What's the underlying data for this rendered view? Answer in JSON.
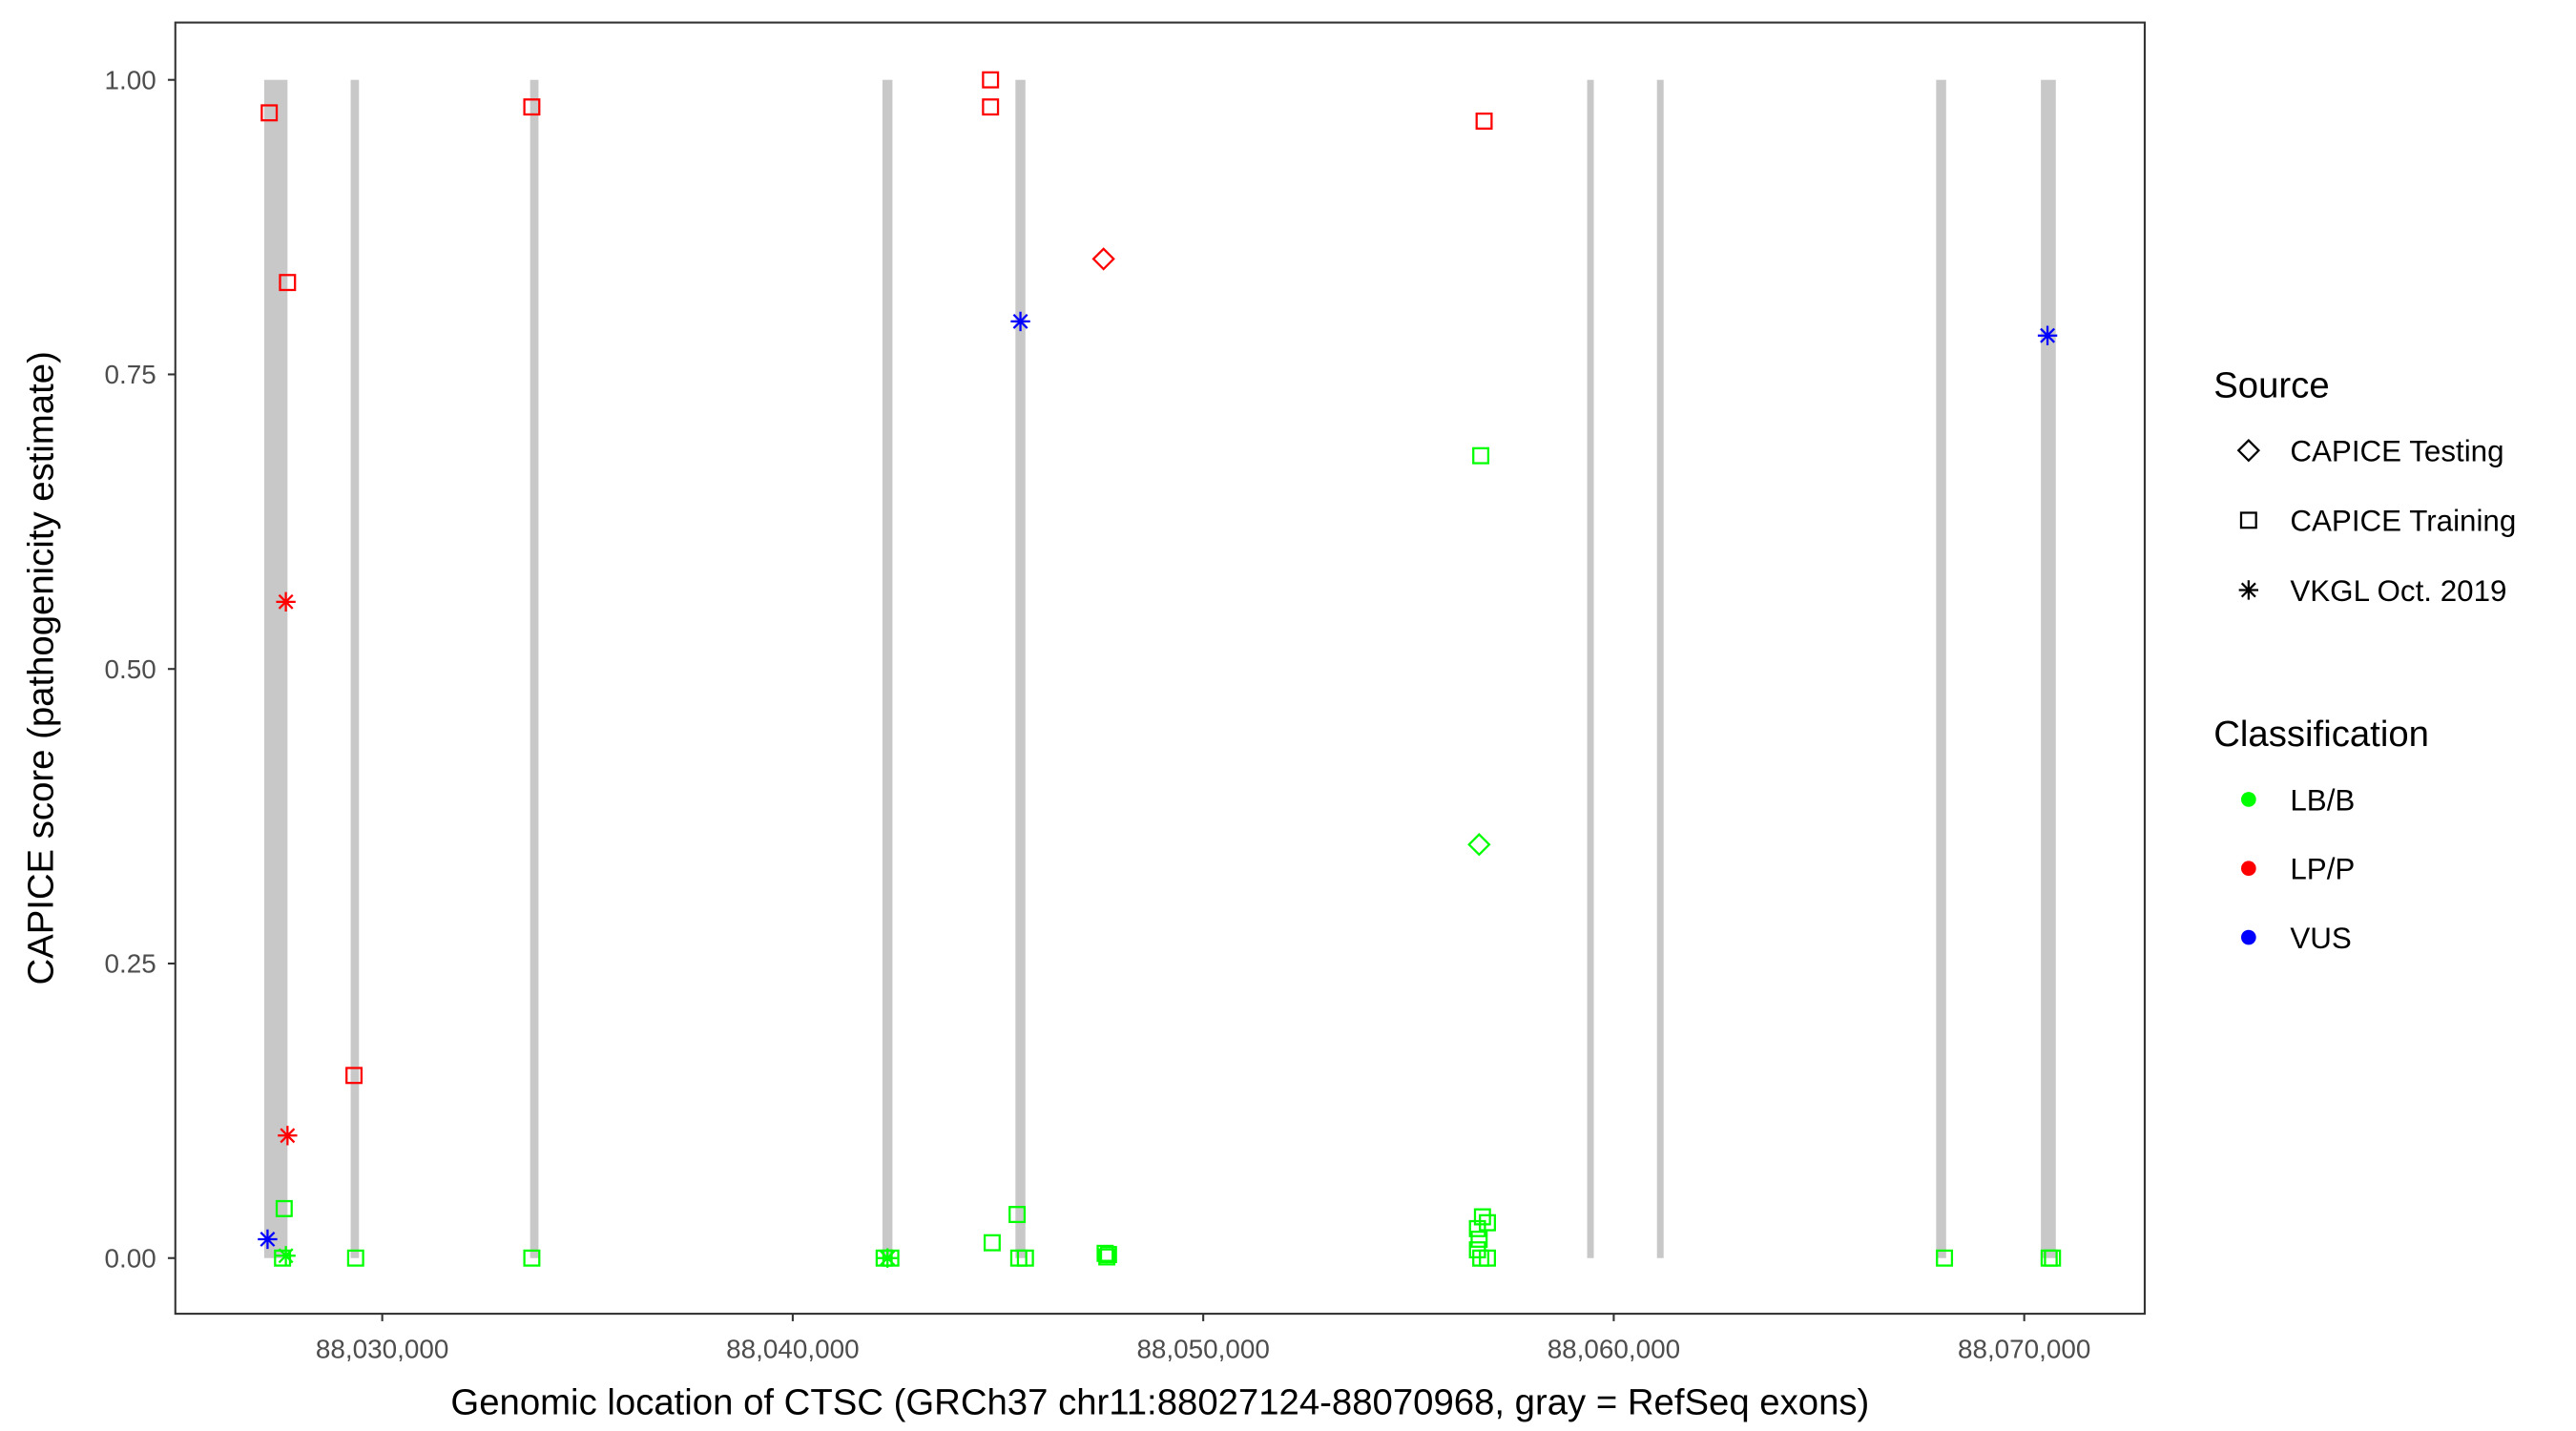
{
  "chart_data": {
    "type": "scatter",
    "xlabel": "Genomic location of CTSC (GRCh37 chr11:88027124-88070968, gray = RefSeq exons)",
    "ylabel": "CAPICE score (pathogenicity estimate)",
    "xlim": [
      88025000,
      88073000
    ],
    "ylim": [
      -0.045,
      1.045
    ],
    "x_ticks": [
      88030000,
      88040000,
      88050000,
      88060000,
      88070000
    ],
    "x_tick_labels": [
      "88,030,000",
      "88,040,000",
      "88,050,000",
      "88,060,000",
      "88,070,000"
    ],
    "y_ticks": [
      0,
      0.25,
      0.5,
      0.75,
      1.0
    ],
    "y_tick_labels": [
      "0.00",
      "0.25",
      "0.50",
      "0.75",
      "1.00"
    ],
    "grid": false,
    "legend_placement": "right",
    "exons": [
      [
        88027124,
        88027692
      ],
      [
        88029231,
        88029433
      ],
      [
        88033603,
        88033806
      ],
      [
        88042186,
        88042429
      ],
      [
        88045425,
        88045668
      ],
      [
        88059352,
        88059514
      ],
      [
        88061053,
        88061215
      ],
      [
        88067854,
        88068097
      ],
      [
        88070405,
        88070769
      ]
    ],
    "exon_color": "#c8c8c8",
    "legend": {
      "source_title": "Source",
      "sources": [
        {
          "label": "CAPICE Testing",
          "shape": "diamond"
        },
        {
          "label": "CAPICE Training",
          "shape": "square"
        },
        {
          "label": "VKGL Oct. 2019",
          "shape": "asterisk"
        }
      ],
      "classification_title": "Classification",
      "classifications": [
        {
          "label": "LB/B",
          "color": "#00ff00"
        },
        {
          "label": "LP/P",
          "color": "#ff0000"
        },
        {
          "label": "VUS",
          "color": "#0000ff"
        }
      ]
    },
    "points": [
      {
        "x": 88027247,
        "y": 0.972,
        "source": "CAPICE Training",
        "class": "LP/P"
      },
      {
        "x": 88027692,
        "y": 0.828,
        "source": "CAPICE Training",
        "class": "LP/P"
      },
      {
        "x": 88033644,
        "y": 0.977,
        "source": "CAPICE Training",
        "class": "LP/P"
      },
      {
        "x": 88029312,
        "y": 0.155,
        "source": "CAPICE Training",
        "class": "LP/P"
      },
      {
        "x": 88044818,
        "y": 1.0,
        "source": "CAPICE Training",
        "class": "LP/P"
      },
      {
        "x": 88044818,
        "y": 0.977,
        "source": "CAPICE Training",
        "class": "LP/P"
      },
      {
        "x": 88056842,
        "y": 0.965,
        "source": "CAPICE Training",
        "class": "LP/P"
      },
      {
        "x": 88047571,
        "y": 0.848,
        "source": "CAPICE Testing",
        "class": "LP/P"
      },
      {
        "x": 88027652,
        "y": 0.557,
        "source": "VKGL Oct. 2019",
        "class": "LP/P"
      },
      {
        "x": 88027692,
        "y": 0.104,
        "source": "VKGL Oct. 2019",
        "class": "LP/P"
      },
      {
        "x": 88027206,
        "y": 0.016,
        "source": "VKGL Oct. 2019",
        "class": "VUS"
      },
      {
        "x": 88045547,
        "y": 0.795,
        "source": "VKGL Oct. 2019",
        "class": "VUS"
      },
      {
        "x": 88070567,
        "y": 0.783,
        "source": "VKGL Oct. 2019",
        "class": "VUS"
      },
      {
        "x": 88027611,
        "y": 0.042,
        "source": "CAPICE Training",
        "class": "LB/B"
      },
      {
        "x": 88027571,
        "y": 0.0,
        "source": "CAPICE Training",
        "class": "LB/B"
      },
      {
        "x": 88027652,
        "y": 0.002,
        "source": "VKGL Oct. 2019",
        "class": "LB/B"
      },
      {
        "x": 88029352,
        "y": 0.0,
        "source": "CAPICE Training",
        "class": "LB/B"
      },
      {
        "x": 88033644,
        "y": 0.0,
        "source": "CAPICE Training",
        "class": "LB/B"
      },
      {
        "x": 88042227,
        "y": 0.0,
        "source": "CAPICE Training",
        "class": "LB/B"
      },
      {
        "x": 88042389,
        "y": 0.0,
        "source": "CAPICE Training",
        "class": "LB/B"
      },
      {
        "x": 88042308,
        "y": 0.0,
        "source": "VKGL Oct. 2019",
        "class": "LB/B"
      },
      {
        "x": 88044858,
        "y": 0.013,
        "source": "CAPICE Training",
        "class": "LB/B"
      },
      {
        "x": 88045466,
        "y": 0.037,
        "source": "CAPICE Training",
        "class": "LB/B"
      },
      {
        "x": 88045506,
        "y": 0.0,
        "source": "CAPICE Training",
        "class": "LB/B"
      },
      {
        "x": 88045668,
        "y": 0.0,
        "source": "CAPICE Training",
        "class": "LB/B"
      },
      {
        "x": 88047611,
        "y": 0.004,
        "source": "CAPICE Training",
        "class": "LB/B"
      },
      {
        "x": 88047652,
        "y": 0.001,
        "source": "CAPICE Training",
        "class": "LB/B"
      },
      {
        "x": 88047692,
        "y": 0.003,
        "source": "CAPICE Training",
        "class": "LB/B"
      },
      {
        "x": 88056761,
        "y": 0.681,
        "source": "CAPICE Training",
        "class": "LB/B"
      },
      {
        "x": 88056721,
        "y": 0.351,
        "source": "CAPICE Testing",
        "class": "LB/B"
      },
      {
        "x": 88056680,
        "y": 0.025,
        "source": "CAPICE Training",
        "class": "LB/B"
      },
      {
        "x": 88056802,
        "y": 0.035,
        "source": "CAPICE Training",
        "class": "LB/B"
      },
      {
        "x": 88056923,
        "y": 0.03,
        "source": "CAPICE Training",
        "class": "LB/B"
      },
      {
        "x": 88056721,
        "y": 0.016,
        "source": "CAPICE Training",
        "class": "LB/B"
      },
      {
        "x": 88056680,
        "y": 0.007,
        "source": "CAPICE Training",
        "class": "LB/B"
      },
      {
        "x": 88056761,
        "y": 0.0,
        "source": "CAPICE Training",
        "class": "LB/B"
      },
      {
        "x": 88056923,
        "y": 0.0,
        "source": "CAPICE Training",
        "class": "LB/B"
      },
      {
        "x": 88068057,
        "y": 0.0,
        "source": "CAPICE Training",
        "class": "LB/B"
      },
      {
        "x": 88070607,
        "y": 0.0,
        "source": "CAPICE Training",
        "class": "LB/B"
      },
      {
        "x": 88070688,
        "y": 0.0,
        "source": "CAPICE Training",
        "class": "LB/B"
      }
    ]
  }
}
